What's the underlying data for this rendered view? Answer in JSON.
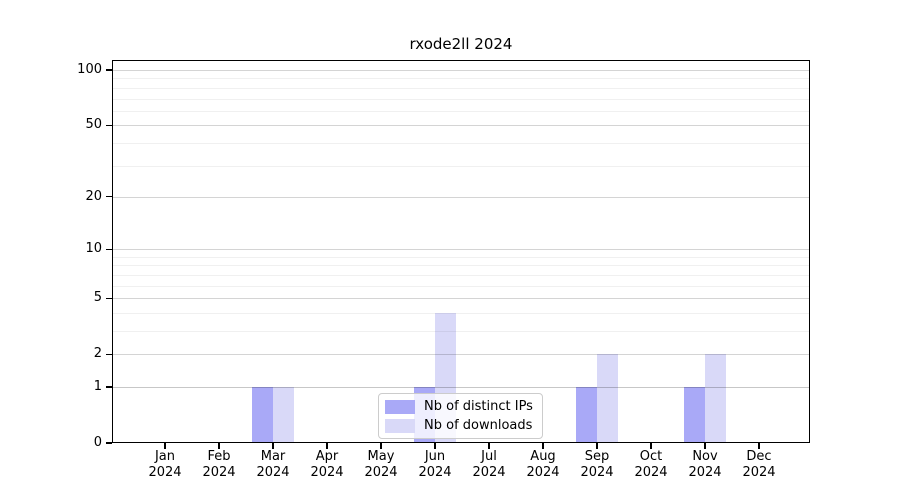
{
  "title": "rxode2ll 2024",
  "chart_data": {
    "type": "bar",
    "title": "rxode2ll 2024",
    "months": [
      "Jan",
      "Feb",
      "Mar",
      "Apr",
      "May",
      "Jun",
      "Jul",
      "Aug",
      "Sep",
      "Oct",
      "Nov",
      "Dec"
    ],
    "year": "2024",
    "categories": [
      "Jan 2024",
      "Feb 2024",
      "Mar 2024",
      "Apr 2024",
      "May 2024",
      "Jun 2024",
      "Jul 2024",
      "Aug 2024",
      "Sep 2024",
      "Oct 2024",
      "Nov 2024",
      "Dec 2024"
    ],
    "series": [
      {
        "name": "Nb of distinct IPs",
        "color": "#a9a9f7",
        "values": [
          0,
          0,
          1,
          0,
          0,
          1,
          0,
          0,
          1,
          0,
          1,
          0
        ]
      },
      {
        "name": "Nb of downloads",
        "color": "#d9d9f8",
        "values": [
          0,
          0,
          1,
          0,
          0,
          4,
          0,
          0,
          2,
          0,
          2,
          0
        ]
      }
    ],
    "xlabel": "",
    "ylabel": "",
    "yscale": "log1p",
    "ylim": [
      0,
      113
    ],
    "yticks": [
      0,
      1,
      2,
      5,
      10,
      20,
      50,
      100
    ],
    "minor_gridlines": [
      3,
      4,
      6,
      7,
      8,
      9,
      30,
      40,
      60,
      70,
      80,
      90
    ],
    "grid": "horizontal",
    "legend_position": "lower-center-inside"
  }
}
